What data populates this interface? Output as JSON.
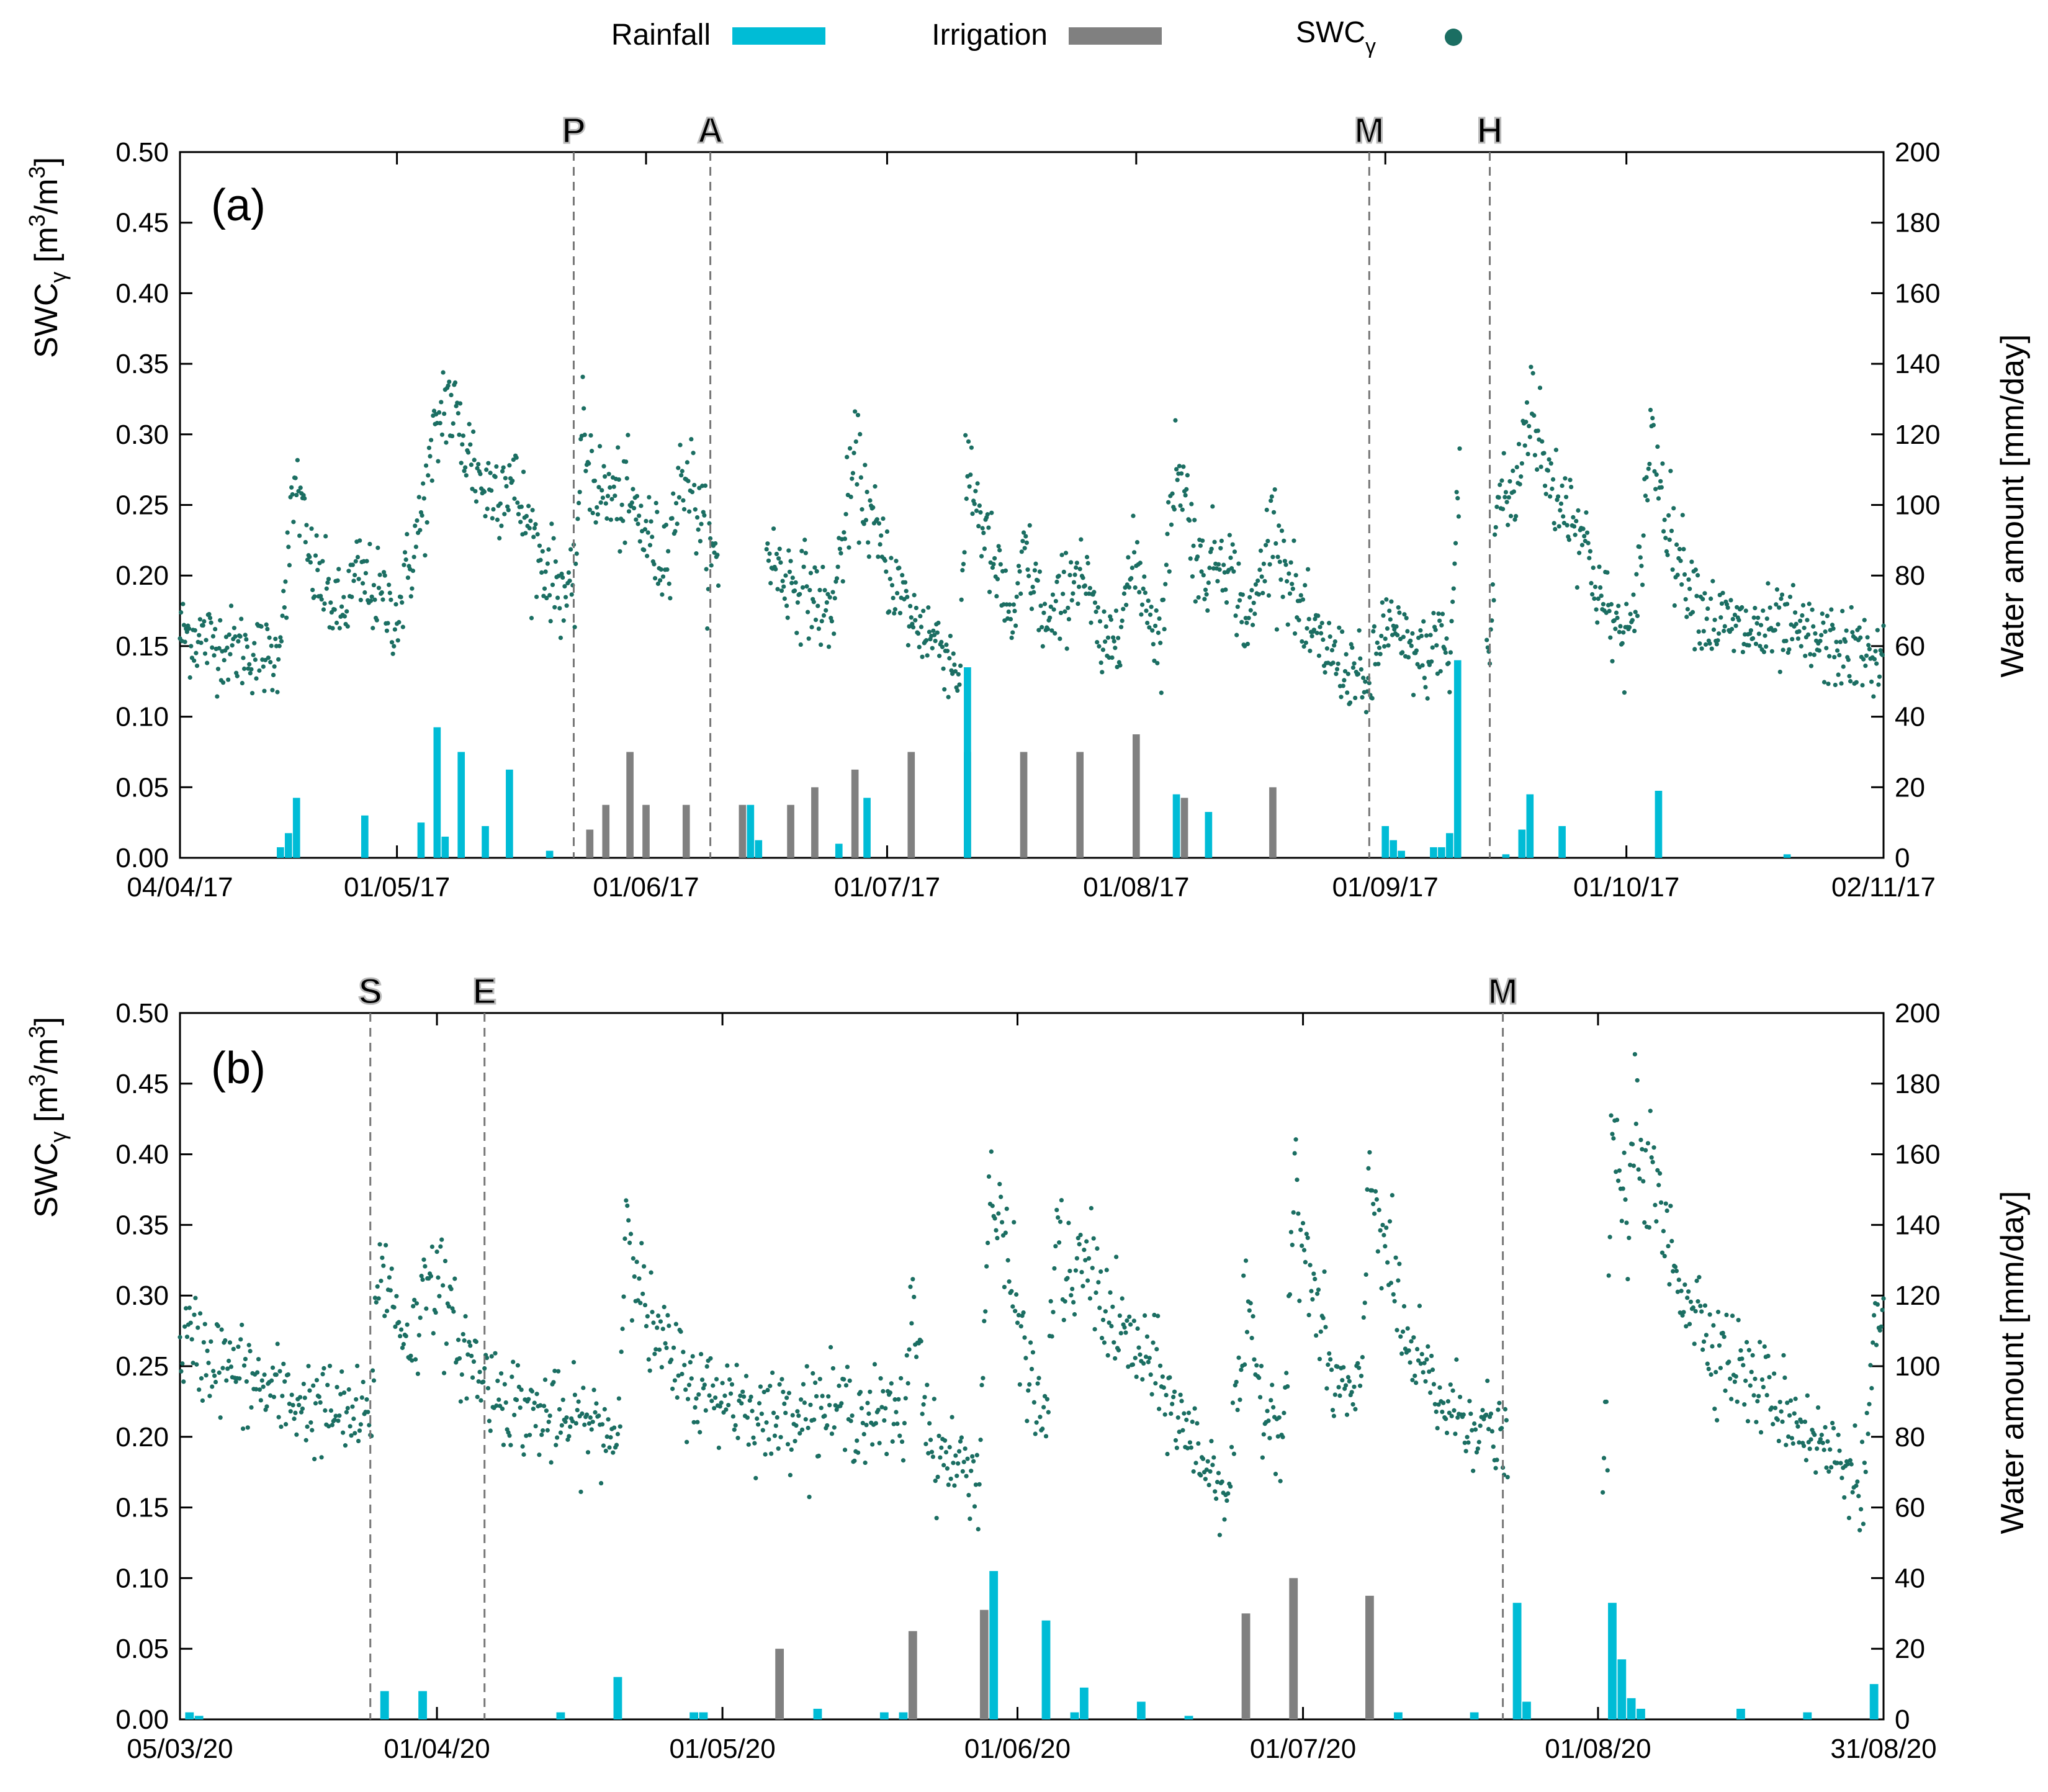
{
  "colors": {
    "rainfall": "#00bcd6",
    "irrigation": "#808080",
    "swc": "#1b6e62",
    "marker_text": "#bbbbbb",
    "marker_line": "#777777"
  },
  "legend": {
    "rainfall": "Rainfall",
    "irrigation": "Irrigation",
    "swc": "SWC",
    "swc_sub": "γ"
  },
  "chart_data": [
    {
      "type": "bar+scatter",
      "panel_label": "(a)",
      "ylabel": "SWC",
      "ylabel_sub": "γ",
      "ylabel_unit_open": " [m",
      "ylabel_unit_sup1": "3",
      "ylabel_unit_mid": "/m",
      "ylabel_unit_sup2": "3",
      "ylabel_unit_close": "]",
      "y2label": "Water amount [mm/day]",
      "ylim": [
        0,
        0.5
      ],
      "y2lim": [
        0,
        200
      ],
      "yticks": [
        "0.00",
        "0.05",
        "0.10",
        "0.15",
        "0.20",
        "0.25",
        "0.30",
        "0.35",
        "0.40",
        "0.45",
        "0.50"
      ],
      "y2ticks": [
        "0",
        "20",
        "40",
        "60",
        "80",
        "100",
        "120",
        "140",
        "160",
        "180",
        "200"
      ],
      "x_span_days": 212,
      "xticks": [
        {
          "day": 0,
          "label": "04/04/17"
        },
        {
          "day": 27,
          "label": "01/05/17"
        },
        {
          "day": 58,
          "label": "01/06/17"
        },
        {
          "day": 88,
          "label": "01/07/17"
        },
        {
          "day": 119,
          "label": "01/08/17"
        },
        {
          "day": 150,
          "label": "01/09/17"
        },
        {
          "day": 180,
          "label": "01/10/17"
        },
        {
          "day": 212,
          "label": "02/11/17"
        }
      ],
      "markers": [
        {
          "day": 49,
          "label": "P"
        },
        {
          "day": 66,
          "label": "A"
        },
        {
          "day": 148,
          "label": "M"
        },
        {
          "day": 163,
          "label": "H"
        }
      ],
      "rainfall": [
        {
          "day": 12.5,
          "mm": 3
        },
        {
          "day": 13.5,
          "mm": 7
        },
        {
          "day": 14.5,
          "mm": 17
        },
        {
          "day": 23,
          "mm": 12
        },
        {
          "day": 30,
          "mm": 10
        },
        {
          "day": 32,
          "mm": 37
        },
        {
          "day": 33,
          "mm": 6
        },
        {
          "day": 35,
          "mm": 30
        },
        {
          "day": 38,
          "mm": 9
        },
        {
          "day": 41,
          "mm": 25
        },
        {
          "day": 46,
          "mm": 2
        },
        {
          "day": 71,
          "mm": 15
        },
        {
          "day": 72,
          "mm": 5
        },
        {
          "day": 82,
          "mm": 4
        },
        {
          "day": 85.5,
          "mm": 17
        },
        {
          "day": 98,
          "mm": 54
        },
        {
          "day": 124,
          "mm": 18
        },
        {
          "day": 128,
          "mm": 13
        },
        {
          "day": 150,
          "mm": 9
        },
        {
          "day": 151,
          "mm": 5
        },
        {
          "day": 152,
          "mm": 2
        },
        {
          "day": 156,
          "mm": 3
        },
        {
          "day": 157,
          "mm": 3
        },
        {
          "day": 158,
          "mm": 7
        },
        {
          "day": 159,
          "mm": 56
        },
        {
          "day": 165,
          "mm": 1
        },
        {
          "day": 167,
          "mm": 8
        },
        {
          "day": 168,
          "mm": 18
        },
        {
          "day": 172,
          "mm": 9
        },
        {
          "day": 184,
          "mm": 19
        },
        {
          "day": 200,
          "mm": 1
        }
      ],
      "irrigation": [
        {
          "day": 51,
          "mm": 8
        },
        {
          "day": 53,
          "mm": 15
        },
        {
          "day": 56,
          "mm": 30
        },
        {
          "day": 58,
          "mm": 15
        },
        {
          "day": 63,
          "mm": 15
        },
        {
          "day": 70,
          "mm": 15
        },
        {
          "day": 76,
          "mm": 15
        },
        {
          "day": 79,
          "mm": 20
        },
        {
          "day": 84,
          "mm": 25
        },
        {
          "day": 91,
          "mm": 30
        },
        {
          "day": 98,
          "mm": 30
        },
        {
          "day": 105,
          "mm": 30
        },
        {
          "day": 112,
          "mm": 30
        },
        {
          "day": 119,
          "mm": 35
        },
        {
          "day": 125,
          "mm": 17
        },
        {
          "day": 136,
          "mm": 20
        }
      ],
      "swc_anchors": [
        [
          0,
          0.16
        ],
        [
          12,
          0.14
        ],
        [
          13,
          0.19
        ],
        [
          14.5,
          0.27
        ],
        [
          16,
          0.21
        ],
        [
          20,
          0.17
        ],
        [
          22,
          0.2
        ],
        [
          24,
          0.19
        ],
        [
          27,
          0.17
        ],
        [
          30,
          0.24
        ],
        [
          33,
          0.33
        ],
        [
          35,
          0.3
        ],
        [
          38,
          0.26
        ],
        [
          41,
          0.27
        ],
        [
          45,
          0.21
        ],
        [
          49,
          0.18
        ],
        [
          50,
          0.3
        ],
        [
          52,
          0.26
        ],
        [
          56,
          0.25
        ],
        [
          60,
          0.21
        ],
        [
          63,
          0.28
        ],
        [
          66,
          0.21
        ],
        [
          67,
          0.21
        ],
        [
          72,
          0.23
        ],
        [
          75,
          0.2
        ],
        [
          78,
          0.19
        ],
        [
          81,
          0.17
        ],
        [
          84,
          0.28
        ],
        [
          87,
          0.22
        ],
        [
          91,
          0.17
        ],
        [
          95,
          0.15
        ],
        [
          97,
          0.13
        ],
        [
          98,
          0.28
        ],
        [
          101,
          0.21
        ],
        [
          104,
          0.16
        ],
        [
          105,
          0.22
        ],
        [
          108,
          0.16
        ],
        [
          112,
          0.21
        ],
        [
          115,
          0.14
        ],
        [
          119,
          0.21
        ],
        [
          122,
          0.15
        ],
        [
          124,
          0.29
        ],
        [
          127,
          0.2
        ],
        [
          130,
          0.22
        ],
        [
          133,
          0.16
        ],
        [
          136,
          0.24
        ],
        [
          140,
          0.16
        ],
        [
          144,
          0.14
        ],
        [
          148,
          0.12
        ],
        [
          150,
          0.17
        ],
        [
          152,
          0.15
        ],
        [
          155,
          0.14
        ],
        [
          157,
          0.16
        ],
        [
          158,
          0.13
        ],
        [
          159,
          0.26
        ],
        [
          161,
          0.25
        ],
        [
          163,
          0.14
        ],
        [
          164,
          0.26
        ],
        [
          166,
          0.25
        ],
        [
          168,
          0.33
        ],
        [
          170,
          0.27
        ],
        [
          174,
          0.24
        ],
        [
          177,
          0.18
        ],
        [
          179,
          0.16
        ],
        [
          181,
          0.16
        ],
        [
          183,
          0.3
        ],
        [
          186,
          0.22
        ],
        [
          190,
          0.17
        ],
        [
          195,
          0.16
        ],
        [
          200,
          0.16
        ],
        [
          205,
          0.15
        ],
        [
          212,
          0.14
        ]
      ],
      "swc_gaps": [
        [
          67,
          73
        ],
        [
          159.3,
          162.6
        ]
      ]
    },
    {
      "type": "bar+scatter",
      "panel_label": "(b)",
      "ylabel": "SWC",
      "ylabel_sub": "γ",
      "ylabel_unit_open": " [m",
      "ylabel_unit_sup1": "3",
      "ylabel_unit_mid": "/m",
      "ylabel_unit_sup2": "3",
      "ylabel_unit_close": "]",
      "y2label": "Water amount [mm/day]",
      "ylim": [
        0,
        0.5
      ],
      "y2lim": [
        0,
        200
      ],
      "yticks": [
        "0.00",
        "0.05",
        "0.10",
        "0.15",
        "0.20",
        "0.25",
        "0.30",
        "0.35",
        "0.40",
        "0.45",
        "0.50"
      ],
      "y2ticks": [
        "0",
        "20",
        "40",
        "60",
        "80",
        "100",
        "120",
        "140",
        "160",
        "180",
        "200"
      ],
      "x_span_days": 179,
      "xticks": [
        {
          "day": 0,
          "label": "05/03/20"
        },
        {
          "day": 27,
          "label": "01/04/20"
        },
        {
          "day": 57,
          "label": "01/05/20"
        },
        {
          "day": 88,
          "label": "01/06/20"
        },
        {
          "day": 118,
          "label": "01/07/20"
        },
        {
          "day": 149,
          "label": "01/08/20"
        },
        {
          "day": 179,
          "label": "31/08/20"
        }
      ],
      "markers": [
        {
          "day": 20,
          "label": "S"
        },
        {
          "day": 32,
          "label": "E"
        },
        {
          "day": 139,
          "label": "M"
        }
      ],
      "rainfall": [
        {
          "day": 1,
          "mm": 2
        },
        {
          "day": 2,
          "mm": 1
        },
        {
          "day": 21.5,
          "mm": 8
        },
        {
          "day": 25.5,
          "mm": 8
        },
        {
          "day": 40,
          "mm": 2
        },
        {
          "day": 46,
          "mm": 12
        },
        {
          "day": 54,
          "mm": 2
        },
        {
          "day": 55,
          "mm": 2
        },
        {
          "day": 67,
          "mm": 3
        },
        {
          "day": 74,
          "mm": 2
        },
        {
          "day": 76,
          "mm": 2
        },
        {
          "day": 85.5,
          "mm": 42
        },
        {
          "day": 91,
          "mm": 28
        },
        {
          "day": 94,
          "mm": 2
        },
        {
          "day": 95,
          "mm": 9
        },
        {
          "day": 101,
          "mm": 5
        },
        {
          "day": 106,
          "mm": 1
        },
        {
          "day": 128,
          "mm": 2
        },
        {
          "day": 136,
          "mm": 2
        },
        {
          "day": 140.5,
          "mm": 33
        },
        {
          "day": 141.5,
          "mm": 5
        },
        {
          "day": 150.5,
          "mm": 33
        },
        {
          "day": 151.5,
          "mm": 17
        },
        {
          "day": 152.5,
          "mm": 6
        },
        {
          "day": 153.5,
          "mm": 3
        },
        {
          "day": 164,
          "mm": 3
        },
        {
          "day": 171,
          "mm": 2
        },
        {
          "day": 178,
          "mm": 10
        }
      ],
      "irrigation": [
        {
          "day": 63,
          "mm": 20
        },
        {
          "day": 77,
          "mm": 25
        },
        {
          "day": 84.5,
          "mm": 31
        },
        {
          "day": 112,
          "mm": 30
        },
        {
          "day": 117,
          "mm": 40
        },
        {
          "day": 125,
          "mm": 35
        }
      ],
      "swc_anchors": [
        [
          0,
          0.27
        ],
        [
          5,
          0.25
        ],
        [
          10,
          0.23
        ],
        [
          15,
          0.22
        ],
        [
          20,
          0.21
        ],
        [
          21,
          0.33
        ],
        [
          23,
          0.28
        ],
        [
          25,
          0.27
        ],
        [
          26,
          0.33
        ],
        [
          29,
          0.27
        ],
        [
          32,
          0.24
        ],
        [
          36,
          0.22
        ],
        [
          40,
          0.21
        ],
        [
          43,
          0.21
        ],
        [
          46,
          0.2
        ],
        [
          47,
          0.37
        ],
        [
          49,
          0.28
        ],
        [
          52,
          0.25
        ],
        [
          55,
          0.23
        ],
        [
          58,
          0.23
        ],
        [
          60,
          0.22
        ],
        [
          62,
          0.21
        ],
        [
          64,
          0.22
        ],
        [
          70,
          0.22
        ],
        [
          76,
          0.21
        ],
        [
          77,
          0.3
        ],
        [
          79,
          0.19
        ],
        [
          82,
          0.18
        ],
        [
          84,
          0.17
        ],
        [
          85,
          0.38
        ],
        [
          87,
          0.32
        ],
        [
          90,
          0.22
        ],
        [
          91,
          0.21
        ],
        [
          92,
          0.34
        ],
        [
          94,
          0.3
        ],
        [
          95,
          0.33
        ],
        [
          98,
          0.28
        ],
        [
          102,
          0.25
        ],
        [
          106,
          0.2
        ],
        [
          109,
          0.17
        ],
        [
          110,
          0.16
        ],
        [
          112,
          0.28
        ],
        [
          114,
          0.22
        ],
        [
          116,
          0.21
        ],
        [
          117,
          0.37
        ],
        [
          121,
          0.24
        ],
        [
          124,
          0.22
        ],
        [
          125,
          0.39
        ],
        [
          129,
          0.26
        ],
        [
          133,
          0.22
        ],
        [
          137,
          0.21
        ],
        [
          139,
          0.19
        ],
        [
          150,
          0.2
        ],
        [
          150.4,
          0.42
        ],
        [
          152,
          0.35
        ],
        [
          153,
          0.42
        ],
        [
          157,
          0.32
        ],
        [
          161,
          0.27
        ],
        [
          165,
          0.24
        ],
        [
          169,
          0.22
        ],
        [
          173,
          0.19
        ],
        [
          177,
          0.17
        ],
        [
          178,
          0.27
        ],
        [
          179,
          0.28
        ]
      ],
      "swc_gaps": [
        [
          139.5,
          149.5
        ]
      ]
    }
  ]
}
